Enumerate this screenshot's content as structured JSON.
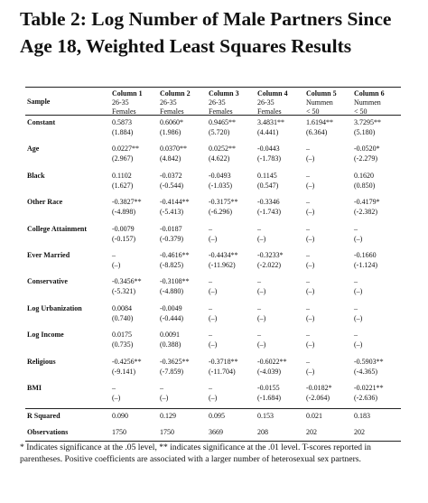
{
  "title": "Table 2: Log Number of Male Partners Since Age 18, Weighted Least Squares Results",
  "table": {
    "header": [
      [
        "Sample",
        "Column 1",
        "Column 2",
        "Column 3",
        "Column 4",
        "Column 5",
        "Column 6"
      ],
      [
        "26-35",
        "26-35",
        "26-35",
        "26-35",
        "Nummen",
        "Nummen"
      ],
      [
        "Females",
        "Females",
        "Females",
        "Females",
        "< 50",
        "< 50"
      ]
    ],
    "rows": [
      {
        "label": "Constant",
        "coef": [
          "0.5873",
          "0.6060*",
          "0.9465**",
          "3.4831**",
          "1.6194**",
          "3.7295**"
        ],
        "t": [
          "(1.884)",
          "(1.986)",
          "(5.720)",
          "(4.441)",
          "(6.364)",
          "(5.180)"
        ]
      },
      {
        "label": "Age",
        "coef": [
          "0.0227**",
          "0.0370**",
          "0.0252**",
          "-0.0443",
          "–",
          "-0.0520*"
        ],
        "t": [
          "(2.967)",
          "(4.842)",
          "(4.622)",
          "(-1.783)",
          "(–)",
          "(-2.279)"
        ]
      },
      {
        "label": "Black",
        "coef": [
          "0.1102",
          "-0.0372",
          "-0.0493",
          "0.1145",
          "–",
          "0.1620"
        ],
        "t": [
          "(1.627)",
          "(-0.544)",
          "(-1.035)",
          "(0.547)",
          "(–)",
          "(0.850)"
        ]
      },
      {
        "label": "Other Race",
        "coef": [
          "-0.3827**",
          "-0.4144**",
          "-0.3175**",
          "-0.3346",
          "–",
          "-0.4179*"
        ],
        "t": [
          "(-4.898)",
          "(-5.413)",
          "(-6.296)",
          "(-1.743)",
          "(–)",
          "(-2.382)"
        ]
      },
      {
        "label": "College Attainment",
        "coef": [
          "-0.0079",
          "-0.0187",
          "–",
          "–",
          "–",
          "–"
        ],
        "t": [
          "(-0.157)",
          "(-0.379)",
          "(–)",
          "(–)",
          "(–)",
          "(–)"
        ]
      },
      {
        "label": "Ever Married",
        "coef": [
          "–",
          "-0.4616**",
          "-0.4434**",
          "-0.3233*",
          "–",
          "-0.1660"
        ],
        "t": [
          "(–)",
          "(-8.825)",
          "(-11.962)",
          "(-2.022)",
          "(–)",
          "(-1.124)"
        ]
      },
      {
        "label": "Conservative",
        "coef": [
          "-0.3456**",
          "-0.3108**",
          "–",
          "–",
          "–",
          "–"
        ],
        "t": [
          "(-5.321)",
          "(-4.880)",
          "(–)",
          "(–)",
          "(–)",
          "(–)"
        ]
      },
      {
        "label": "Log Urbanization",
        "coef": [
          "0.0084",
          "-0.0049",
          "–",
          "–",
          "–",
          "–"
        ],
        "t": [
          "(0.740)",
          "(-0.444)",
          "(–)",
          "(–)",
          "(–)",
          "(–)"
        ]
      },
      {
        "label": "Log Income",
        "coef": [
          "0.0175",
          "0.0091",
          "–",
          "–",
          "–",
          "–"
        ],
        "t": [
          "(0.735)",
          "(0.388)",
          "(–)",
          "(–)",
          "(–)",
          "(–)"
        ]
      },
      {
        "label": "Religious",
        "coef": [
          "-0.4256**",
          "-0.3625**",
          "-0.3718**",
          "-0.6022**",
          "–",
          "-0.5903**"
        ],
        "t": [
          "(-9.141)",
          "(-7.859)",
          "(-11.704)",
          "(-4.039)",
          "(–)",
          "(-4.365)"
        ]
      },
      {
        "label": "BMI",
        "coef": [
          "–",
          "–",
          "–",
          "-0.0155",
          "-0.0182*",
          "-0.0221**"
        ],
        "t": [
          "(–)",
          "(–)",
          "(–)",
          "(-1.684)",
          "(-2.064)",
          "(-2.636)"
        ]
      }
    ],
    "summary": [
      {
        "label": "R Squared",
        "values": [
          "0.090",
          "0.129",
          "0.095",
          "0.153",
          "0.021",
          "0.183"
        ]
      },
      {
        "label": "Observations",
        "values": [
          "1750",
          "1750",
          "3669",
          "208",
          "202",
          "202"
        ]
      }
    ]
  },
  "footnote": "* Indicates significance at the .05 level, ** indicates significance at the .01 level. T-scores reported in parentheses. Positive coefficients are associated with a larger number of heterosexual sex partners."
}
